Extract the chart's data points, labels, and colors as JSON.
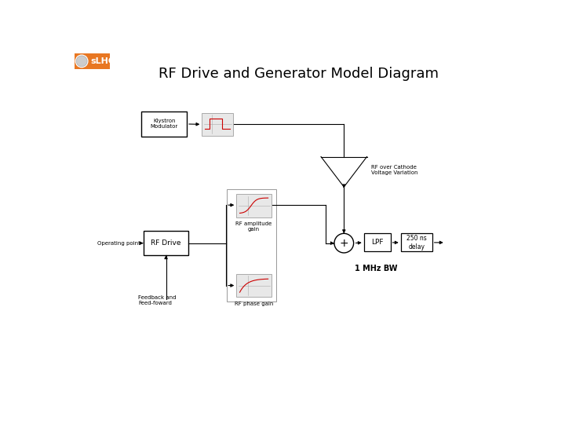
{
  "title": "RF Drive and Generator Model Diagram",
  "title_fontsize": 13,
  "background_color": "#ffffff",
  "logo_text": "sLHC",
  "logo_bg": "#e87722",
  "logo_text_color": "#ffffff",
  "annotations": {
    "operating_point": "Operating point",
    "feedback": "Feedback and\nFeed-foward",
    "rf_amplitude": "RF amplitude\ngain",
    "rf_phase": "RF phase gain",
    "rf_over_cathode": "RF over Cathode\nVoltage Variation",
    "klystron": "Klystron\nModulator",
    "rf_drive_label": "RF Drive",
    "lpf_label": "LPF",
    "delay_label": "250 ns\ndelay",
    "plus_label": "+",
    "bw_label": "1 MHz BW"
  },
  "colors": {
    "box_edge": "#000000",
    "box_fill": "#ffffff",
    "line": "#000000",
    "curve_red": "#cc0000",
    "triangle_edge": "#000000",
    "triangle_fill": "#ffffff",
    "circle_edge": "#000000",
    "circle_fill": "#ffffff",
    "logo_bg": "#e87722",
    "logo_text": "#ffffff",
    "small_box_fill": "#e8e8e8"
  }
}
